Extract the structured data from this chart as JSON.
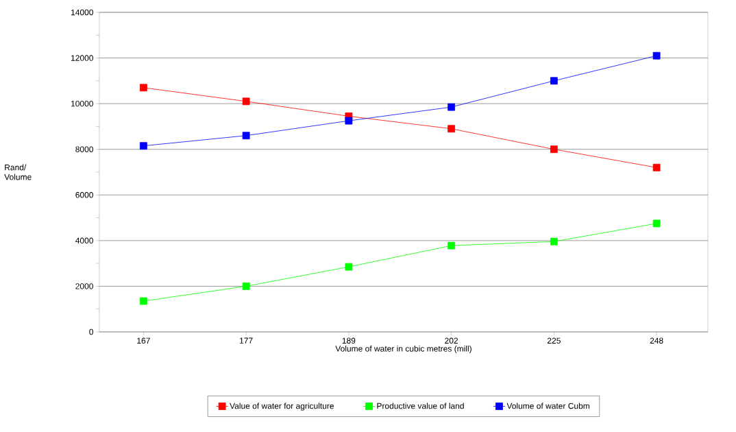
{
  "chart_data": {
    "type": "line",
    "xlabel": "Volume of water in cubic metres      (mill)",
    "ylabel": "Rand/ Volume",
    "categories": [
      "167",
      "177",
      "189",
      "202",
      "225",
      "248"
    ],
    "series": [
      {
        "name": "Value of water for agriculture",
        "color": "#ff0000",
        "values": [
          10700,
          10100,
          9450,
          8900,
          8000,
          7200
        ]
      },
      {
        "name": "Productive value of land",
        "color": "#00ff00",
        "values": [
          1350,
          2000,
          2850,
          3780,
          3960,
          4750
        ]
      },
      {
        "name": "Volume of water Cubm",
        "color": "#0000ff",
        "values": [
          8150,
          8600,
          9250,
          9850,
          11000,
          12100
        ]
      }
    ],
    "ylim": [
      0,
      14000
    ],
    "yticks": [
      0,
      2000,
      4000,
      6000,
      8000,
      10000,
      12000,
      14000
    ],
    "grid": "y",
    "legend": "bottom",
    "marker": "square",
    "line_style": "solid"
  }
}
